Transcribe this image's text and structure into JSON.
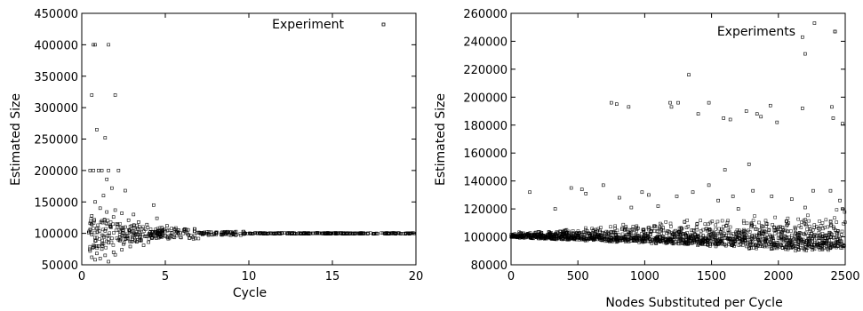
{
  "chart_data": [
    {
      "type": "scatter",
      "title": "",
      "xlabel": "Cycle",
      "ylabel": "Estimated Size",
      "xlim": [
        0,
        20
      ],
      "ylim": [
        50000,
        450000
      ],
      "x_ticks": [
        "0",
        "5",
        "10",
        "15",
        "20"
      ],
      "y_ticks": [
        "50000",
        "100000",
        "150000",
        "200000",
        "250000",
        "300000",
        "350000",
        "400000",
        "450000"
      ],
      "legend": "top-right",
      "marker": "open-square",
      "series": [
        {
          "name": "Experiment",
          "points": [
            [
              0.7,
              400000
            ],
            [
              0.8,
              400000
            ],
            [
              1.6,
              400000
            ],
            [
              0.6,
              320000
            ],
            [
              2.0,
              320000
            ],
            [
              0.9,
              265000
            ],
            [
              1.4,
              252000
            ],
            [
              0.5,
              200000
            ],
            [
              0.7,
              200000
            ],
            [
              1.0,
              200000
            ],
            [
              1.2,
              200000
            ],
            [
              1.6,
              200000
            ],
            [
              2.2,
              200000
            ],
            [
              1.5,
              186000
            ],
            [
              1.8,
              172000
            ],
            [
              2.6,
              168000
            ],
            [
              1.3,
              160000
            ],
            [
              0.8,
              150000
            ],
            [
              4.3,
              145000
            ],
            [
              1.1,
              140000
            ],
            [
              2.0,
              137000
            ],
            [
              1.5,
              134000
            ],
            [
              2.4,
              132000
            ],
            [
              3.1,
              130000
            ],
            [
              0.6,
              128000
            ],
            [
              1.9,
              126000
            ],
            [
              4.5,
              124000
            ],
            [
              2.8,
              121000
            ],
            [
              1.2,
              120000
            ],
            [
              3.4,
              118000
            ],
            [
              0.5,
              116000
            ],
            [
              2.1,
              115000
            ],
            [
              3.9,
              114000
            ],
            [
              5.1,
              112000
            ],
            [
              1.7,
              111000
            ],
            [
              2.6,
              110000
            ],
            [
              4.8,
              109000
            ],
            [
              0.9,
              108000
            ],
            [
              3.6,
              107000
            ],
            [
              5.6,
              106000
            ],
            [
              6.1,
              105000
            ],
            [
              1.4,
              104000
            ],
            [
              2.3,
              103000
            ],
            [
              4.1,
              102000
            ],
            [
              7.0,
              101500
            ],
            [
              0.6,
              98000
            ],
            [
              1.3,
              96000
            ],
            [
              2.7,
              95000
            ],
            [
              3.3,
              94000
            ],
            [
              4.6,
              93000
            ],
            [
              5.3,
              96000
            ],
            [
              6.4,
              97500
            ],
            [
              1.8,
              92000
            ],
            [
              2.2,
              90000
            ],
            [
              0.8,
              88000
            ],
            [
              3.0,
              87000
            ],
            [
              1.6,
              85000
            ],
            [
              4.0,
              86000
            ],
            [
              2.5,
              83000
            ],
            [
              1.0,
              80000
            ],
            [
              0.7,
              78000
            ],
            [
              2.9,
              79000
            ],
            [
              1.2,
              75000
            ],
            [
              3.7,
              81000
            ],
            [
              0.5,
              72000
            ],
            [
              1.9,
              70000
            ],
            [
              0.9,
              68000
            ],
            [
              2.4,
              74000
            ],
            [
              1.4,
              65000
            ],
            [
              0.6,
              62000
            ],
            [
              1.1,
              60000
            ],
            [
              1.6,
              55000
            ],
            [
              0.8,
              58000
            ],
            [
              2.0,
              66000
            ],
            [
              3.2,
              90000
            ]
          ]
        }
      ]
    },
    {
      "type": "scatter",
      "title": "",
      "xlabel": "Nodes Substituted per Cycle",
      "ylabel": "Estimated Size",
      "xlim": [
        0,
        2500
      ],
      "ylim": [
        80000,
        260000
      ],
      "x_ticks": [
        "0",
        "500",
        "1000",
        "1500",
        "2000",
        "2500"
      ],
      "y_ticks": [
        "80000",
        "100000",
        "120000",
        "140000",
        "160000",
        "180000",
        "200000",
        "220000",
        "240000",
        "260000"
      ],
      "legend": "top-right",
      "marker": "open-square",
      "series": [
        {
          "name": "Experiments",
          "points": [
            [
              2270,
              253000
            ],
            [
              2180,
              243000
            ],
            [
              2200,
              231000
            ],
            [
              1330,
              216000
            ],
            [
              750,
              196000
            ],
            [
              790,
              195000
            ],
            [
              880,
              193000
            ],
            [
              1190,
              196000
            ],
            [
              1200,
              193000
            ],
            [
              1250,
              196000
            ],
            [
              1480,
              196000
            ],
            [
              1400,
              188000
            ],
            [
              1590,
              185000
            ],
            [
              1640,
              184000
            ],
            [
              1760,
              190000
            ],
            [
              1840,
              188000
            ],
            [
              1870,
              186000
            ],
            [
              1940,
              194000
            ],
            [
              1990,
              182000
            ],
            [
              2180,
              192000
            ],
            [
              2400,
              193000
            ],
            [
              2410,
              185000
            ],
            [
              2480,
              181000
            ],
            [
              1780,
              152000
            ],
            [
              1600,
              148000
            ],
            [
              1480,
              137000
            ],
            [
              690,
              137000
            ],
            [
              450,
              135000
            ],
            [
              530,
              134000
            ],
            [
              140,
              132000
            ],
            [
              980,
              132000
            ],
            [
              1360,
              132000
            ],
            [
              1810,
              133000
            ],
            [
              2260,
              133000
            ],
            [
              2390,
              133000
            ],
            [
              560,
              131000
            ],
            [
              1030,
              130000
            ],
            [
              1240,
              129000
            ],
            [
              1660,
              129000
            ],
            [
              1950,
              129000
            ],
            [
              810,
              128000
            ],
            [
              1550,
              126000
            ],
            [
              2100,
              127000
            ],
            [
              2460,
              126000
            ],
            [
              330,
              120000
            ],
            [
              900,
              121000
            ],
            [
              1100,
              122000
            ],
            [
              1700,
              120000
            ],
            [
              2200,
              121000
            ],
            [
              2480,
              120000
            ]
          ]
        }
      ]
    }
  ]
}
